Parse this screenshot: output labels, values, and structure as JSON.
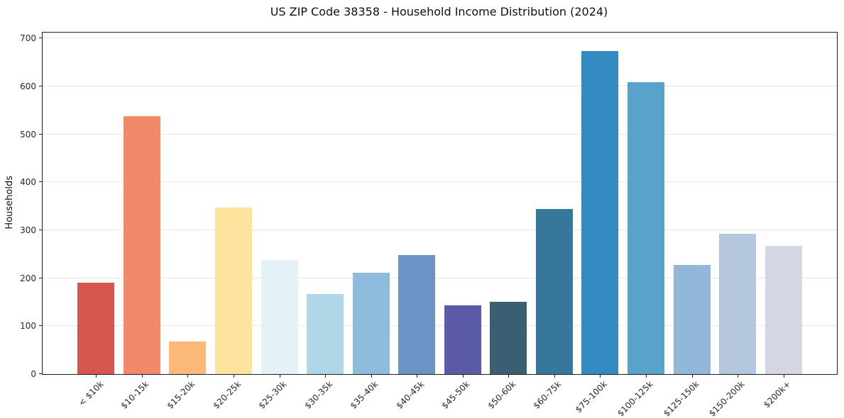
{
  "figure": {
    "title": "US ZIP Code 38358 - Household Income Distribution (2024)",
    "ylabel": "Households"
  },
  "chart_data": {
    "type": "bar",
    "title": "US ZIP Code 38358 - Household Income Distribution (2024)",
    "xlabel": "",
    "ylabel": "Households",
    "ylim": [
      0,
      712
    ],
    "y_ticks": [
      0,
      100,
      200,
      300,
      400,
      500,
      600,
      700
    ],
    "grid": "horizontal",
    "grid_color": "#e7e7ea",
    "legend_position": "none",
    "background_color": "#ffffff",
    "categories": [
      "< $10k",
      "$10-15k",
      "$15-20k",
      "$20-25k",
      "$25-30k",
      "$30-35k",
      "$35-40k",
      "$40-45k",
      "$45-50k",
      "$50-60k",
      "$60-75k",
      "$75-100k",
      "$100-125k",
      "$125-150k",
      "$150-200k",
      "$200k+"
    ],
    "values": [
      191,
      537,
      68,
      347,
      238,
      167,
      211,
      248,
      144,
      150,
      344,
      673,
      608,
      227,
      293,
      268
    ],
    "bar_colors": [
      "#d5564e",
      "#f08a68",
      "#fbb878",
      "#fde49e",
      "#e4f1f7",
      "#b0d7e8",
      "#8fbcdc",
      "#6b93c6",
      "#5b5aa7",
      "#3a5f72",
      "#36789c",
      "#338bc1",
      "#59a3c8",
      "#93b7d9",
      "#b5c7df",
      "#d4d6e4"
    ]
  }
}
